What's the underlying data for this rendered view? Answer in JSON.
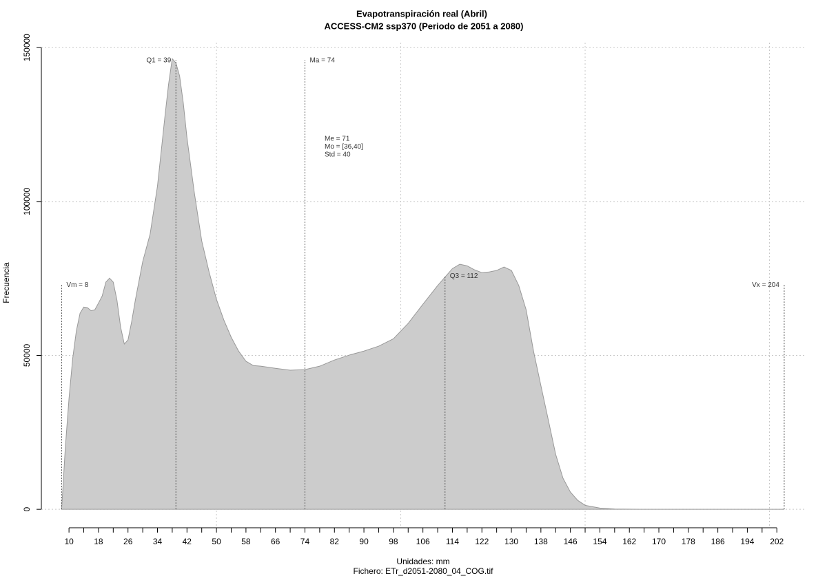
{
  "chart_data": {
    "type": "area",
    "title": "Evapotranspiración real (Abril)",
    "subtitle": "ACCESS-CM2 ssp370 (Periodo de 2051 a 2080)",
    "x_label": "Unidades: mm",
    "caption": "Fichero: ETr_d2051-2080_04_COG.tif",
    "y_label": "Frecuencia",
    "color": "#cccccc",
    "line_color": "#999999",
    "x": [
      8,
      9,
      10,
      11,
      12,
      13,
      14,
      15,
      16,
      17,
      18,
      19,
      20,
      21,
      22,
      23,
      24,
      25,
      26,
      27,
      28,
      30,
      32,
      34,
      36,
      37,
      38,
      39,
      40,
      41,
      42,
      44,
      46,
      48,
      50,
      52,
      54,
      56,
      58,
      60,
      62,
      66,
      70,
      74,
      78,
      82,
      86,
      90,
      94,
      98,
      102,
      106,
      110,
      114,
      116,
      118,
      120,
      122,
      124,
      126,
      128,
      130,
      132,
      134,
      136,
      138,
      140,
      142,
      144,
      146,
      148,
      150,
      154,
      158,
      165,
      204
    ],
    "y": [
      0,
      20000,
      36000,
      49000,
      58000,
      63700,
      65700,
      65500,
      64500,
      64800,
      67000,
      69300,
      73800,
      75100,
      73800,
      68000,
      59200,
      53700,
      55000,
      61000,
      68000,
      80500,
      89400,
      105000,
      127400,
      138000,
      146400,
      145000,
      140800,
      132000,
      120700,
      102800,
      87200,
      77100,
      68200,
      61500,
      55900,
      51400,
      48100,
      46700,
      46500,
      45800,
      45200,
      45400,
      46500,
      48500,
      50100,
      51400,
      53000,
      55400,
      60400,
      66600,
      72700,
      78200,
      79600,
      79100,
      77800,
      76900,
      77100,
      77600,
      78700,
      77600,
      72700,
      64800,
      51400,
      40200,
      29100,
      17900,
      10100,
      5600,
      2900,
      1300,
      400,
      100,
      0,
      0
    ],
    "xlim": [
      2.5,
      210
    ],
    "ylim": [
      -6000,
      151600
    ],
    "xticks": [
      10,
      18,
      26,
      34,
      42,
      50,
      58,
      66,
      74,
      82,
      90,
      98,
      106,
      114,
      122,
      130,
      138,
      146,
      154,
      162,
      170,
      178,
      186,
      194,
      202
    ],
    "xminor_ticks": [
      14,
      22,
      30,
      38,
      46,
      54,
      62,
      70,
      78,
      86,
      94,
      102,
      110,
      118,
      126,
      134,
      142,
      150,
      158,
      166,
      174,
      182,
      190,
      198
    ],
    "yticks": [
      0,
      50000,
      100000,
      150000
    ],
    "xgrid": [
      50,
      100,
      150,
      200
    ],
    "grid": true,
    "markers": [
      {
        "label": "Vm = 8",
        "x": 8,
        "y": 73000
      },
      {
        "label": "Q1 = 39",
        "x": 39,
        "y": 146000
      },
      {
        "label": "Ma = 74",
        "x": 74,
        "y": 146000
      },
      {
        "label": "Q3 = 112",
        "x": 112,
        "y": 76000
      },
      {
        "label": "Vx = 204",
        "x": 204,
        "y": 73000
      }
    ],
    "stats": [
      "Me = 71",
      "Mo = [36,40]",
      "Std = 40"
    ]
  }
}
